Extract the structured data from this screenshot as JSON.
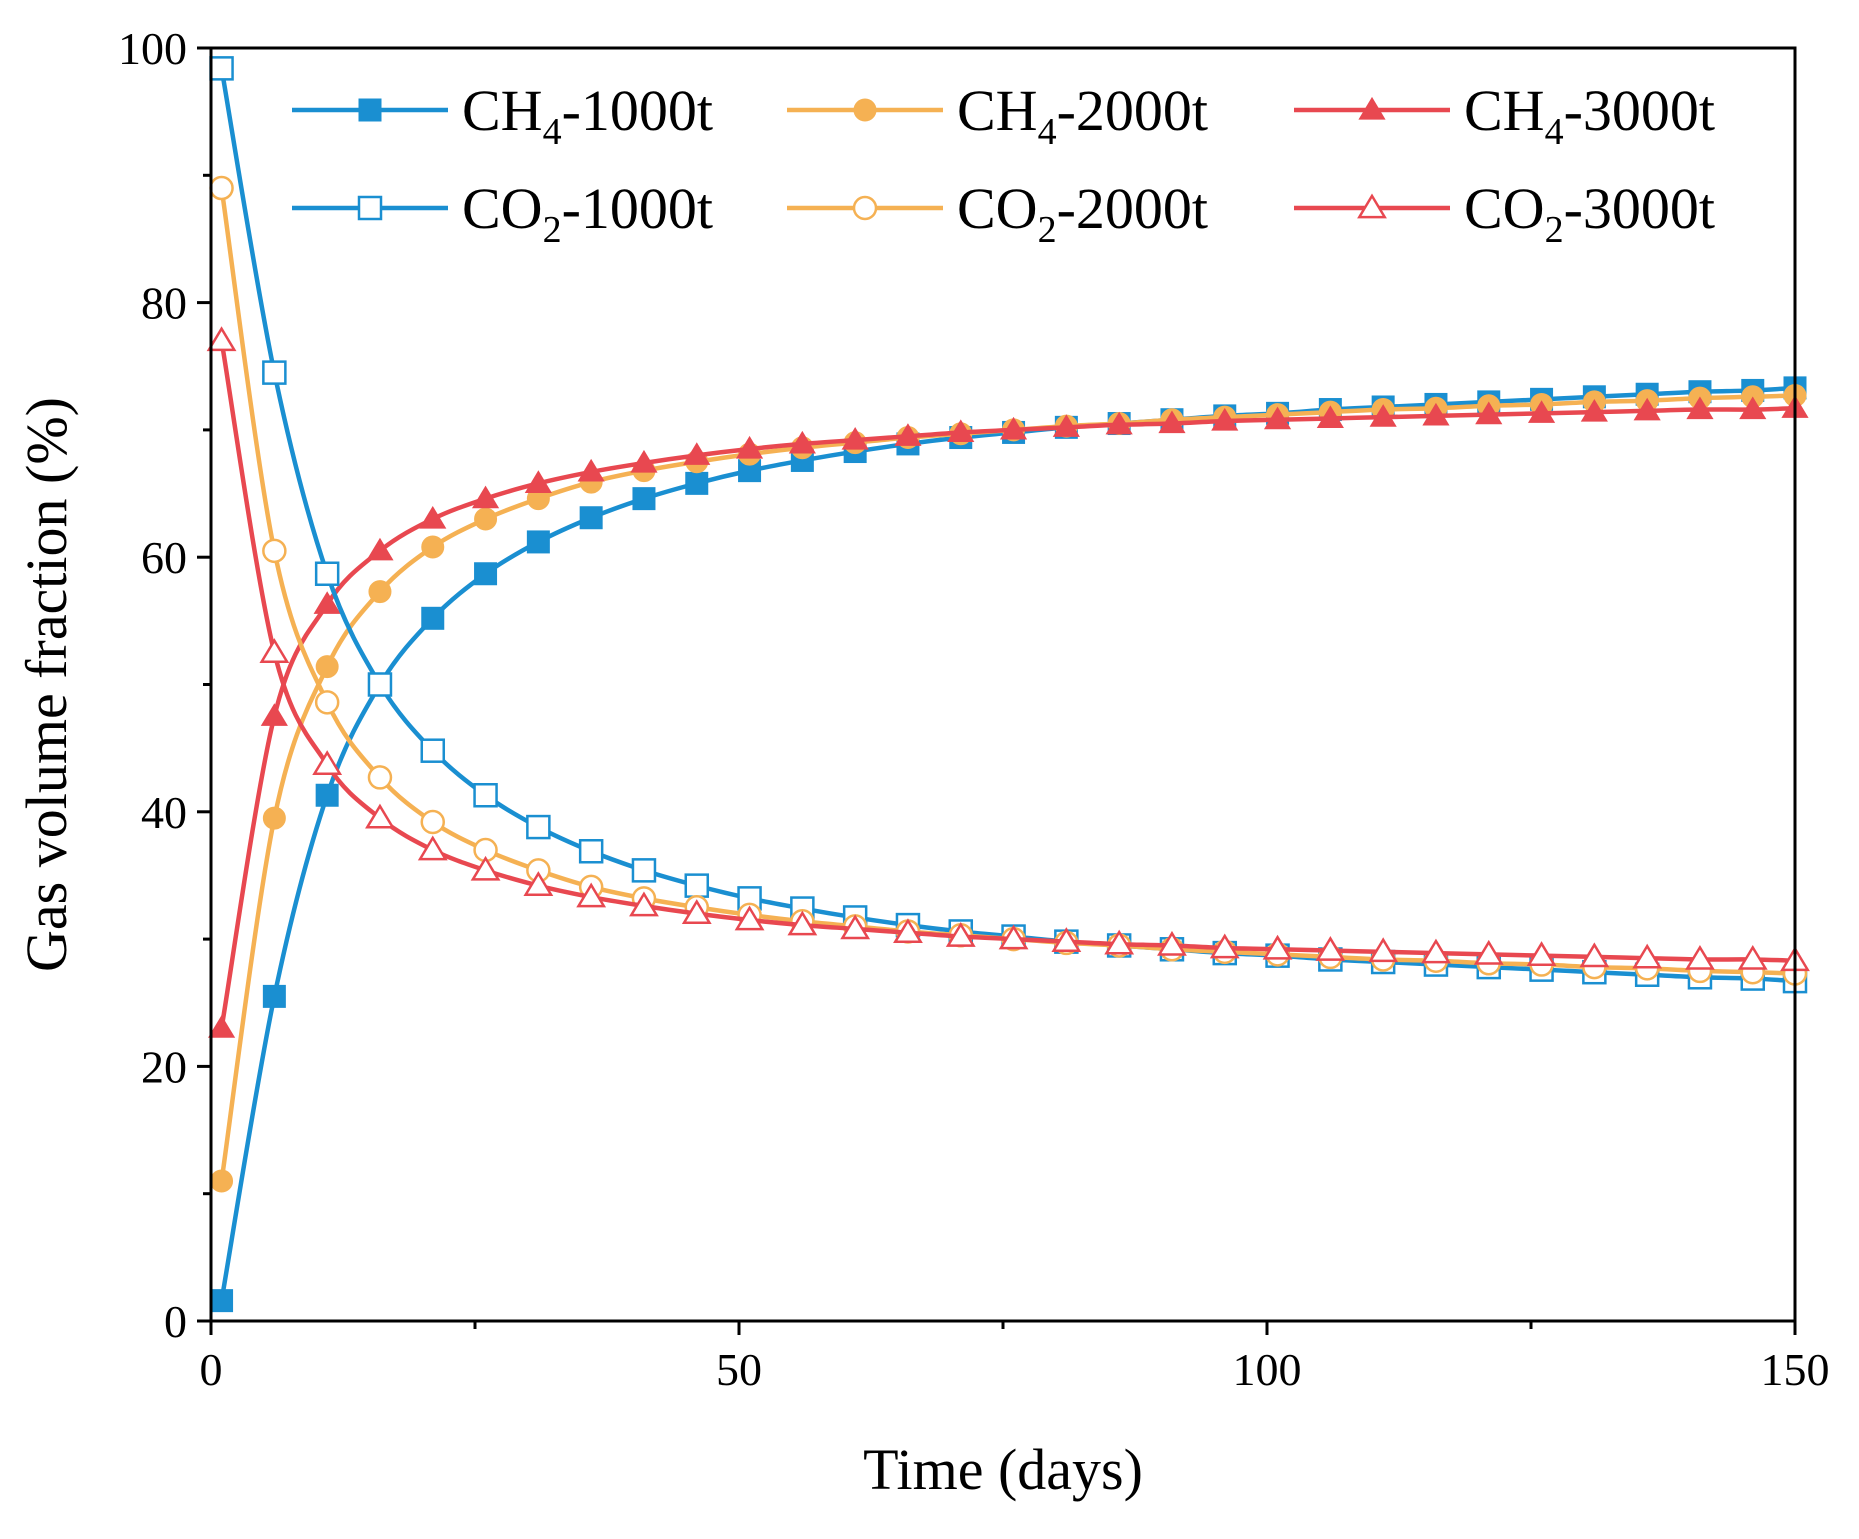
{
  "chart_data": {
    "type": "line",
    "title": "",
    "xlabel": "Time (days)",
    "ylabel": "Gas volume fraction (%)",
    "xlim": [
      0,
      150
    ],
    "ylim": [
      0,
      100
    ],
    "xticks": [
      0,
      50,
      100,
      150
    ],
    "xtick_labels": [
      "0",
      "50",
      "100",
      "150"
    ],
    "yticks": [
      0,
      20,
      40,
      60,
      80,
      100
    ],
    "ytick_labels": [
      "0",
      "20",
      "40",
      "60",
      "80",
      "100"
    ],
    "grid": false,
    "legend_position": "top",
    "x": [
      1,
      6,
      11,
      16,
      21,
      26,
      31,
      36,
      41,
      46,
      51,
      56,
      61,
      66,
      71,
      76,
      81,
      86,
      91,
      96,
      101,
      106,
      111,
      116,
      121,
      126,
      131,
      136,
      141,
      146,
      150
    ],
    "series": [
      {
        "name": "CH4-1000t",
        "prefix": "CH",
        "sub": "4",
        "suffix": "-1000t",
        "color": "#1a8fd1",
        "marker": "square",
        "filled": true,
        "values": [
          1.6,
          25.5,
          41.3,
          50.0,
          55.2,
          58.7,
          61.2,
          63.1,
          64.6,
          65.8,
          66.8,
          67.6,
          68.3,
          68.9,
          69.4,
          69.8,
          70.2,
          70.5,
          70.8,
          71.1,
          71.3,
          71.6,
          71.8,
          72.0,
          72.2,
          72.4,
          72.6,
          72.8,
          73.0,
          73.1,
          73.3
        ]
      },
      {
        "name": "CH4-2000t",
        "prefix": "CH",
        "sub": "4",
        "suffix": "-2000t",
        "color": "#f5b153",
        "marker": "circle",
        "filled": true,
        "values": [
          11.0,
          39.5,
          51.4,
          57.3,
          60.8,
          63.0,
          64.6,
          65.9,
          66.8,
          67.5,
          68.1,
          68.6,
          69.0,
          69.4,
          69.7,
          70.0,
          70.3,
          70.5,
          70.8,
          71.0,
          71.2,
          71.4,
          71.6,
          71.7,
          71.9,
          72.0,
          72.2,
          72.3,
          72.5,
          72.6,
          72.7
        ]
      },
      {
        "name": "CH4-3000t",
        "prefix": "CH",
        "sub": "4",
        "suffix": "-3000t",
        "color": "#e84850",
        "marker": "triangle",
        "filled": true,
        "values": [
          23.0,
          47.5,
          56.3,
          60.5,
          63.0,
          64.6,
          65.8,
          66.7,
          67.4,
          68.0,
          68.5,
          68.9,
          69.2,
          69.5,
          69.8,
          70.0,
          70.2,
          70.4,
          70.5,
          70.7,
          70.8,
          70.9,
          71.0,
          71.1,
          71.2,
          71.3,
          71.4,
          71.5,
          71.6,
          71.6,
          71.7
        ]
      },
      {
        "name": "CO2-1000t",
        "prefix": "CO",
        "sub": "2",
        "suffix": "-1000t",
        "color": "#1a8fd1",
        "marker": "square",
        "filled": false,
        "values": [
          98.4,
          74.5,
          58.7,
          50.0,
          44.8,
          41.3,
          38.8,
          36.9,
          35.4,
          34.2,
          33.2,
          32.4,
          31.7,
          31.1,
          30.6,
          30.2,
          29.8,
          29.5,
          29.2,
          28.9,
          28.7,
          28.4,
          28.2,
          28.0,
          27.8,
          27.6,
          27.4,
          27.2,
          27.0,
          26.9,
          26.7
        ]
      },
      {
        "name": "CO2-2000t",
        "prefix": "CO",
        "sub": "2",
        "suffix": "-2000t",
        "color": "#f5b153",
        "marker": "circle",
        "filled": false,
        "values": [
          89.0,
          60.5,
          48.6,
          42.7,
          39.2,
          37.0,
          35.4,
          34.1,
          33.2,
          32.5,
          31.9,
          31.4,
          31.0,
          30.6,
          30.3,
          30.0,
          29.7,
          29.5,
          29.2,
          29.0,
          28.8,
          28.6,
          28.4,
          28.3,
          28.1,
          28.0,
          27.8,
          27.7,
          27.5,
          27.4,
          27.3
        ]
      },
      {
        "name": "CO2-3000t",
        "prefix": "CO",
        "sub": "2",
        "suffix": "-3000t",
        "color": "#e84850",
        "marker": "triangle",
        "filled": false,
        "values": [
          77.0,
          52.5,
          43.7,
          39.5,
          37.0,
          35.4,
          34.2,
          33.3,
          32.6,
          32.0,
          31.5,
          31.1,
          30.8,
          30.5,
          30.2,
          30.0,
          29.8,
          29.6,
          29.5,
          29.3,
          29.2,
          29.1,
          29.0,
          28.9,
          28.8,
          28.7,
          28.6,
          28.5,
          28.4,
          28.4,
          28.3
        ]
      }
    ]
  }
}
